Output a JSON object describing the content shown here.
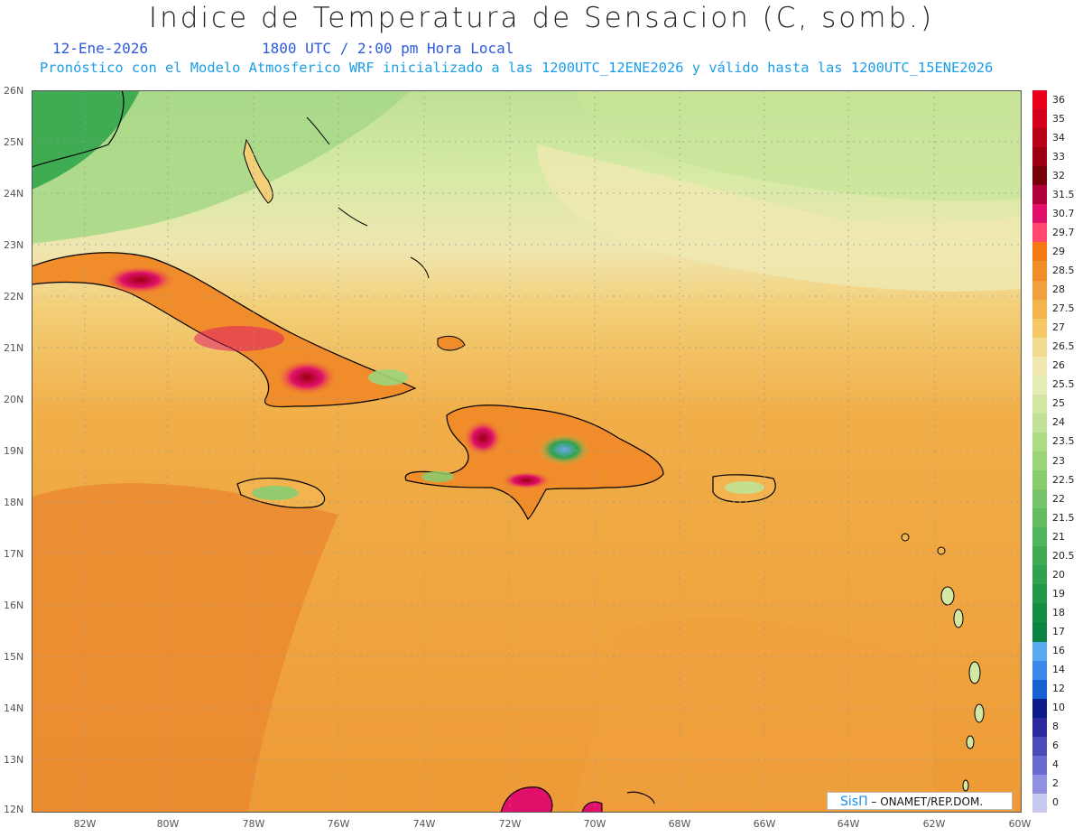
{
  "header": {
    "title": "Indice de Temperatura de Sensacion (C, somb.)",
    "date": "12-Ene-2026",
    "time": "1800 UTC / 2:00 pm Hora Local",
    "model_line": "Pronóstico con el Modelo Atmosferico WRF inicializado a las 1200UTC_12ENE2026 y válido hasta las  1200UTC_15ENE2026"
  },
  "axes": {
    "lat_labels": [
      "26N",
      "25N",
      "24N",
      "23N",
      "22N",
      "21N",
      "20N",
      "19N",
      "18N",
      "17N",
      "16N",
      "15N",
      "14N",
      "13N",
      "12N"
    ],
    "lon_labels": [
      "82W",
      "80W",
      "78W",
      "76W",
      "74W",
      "72W",
      "70W",
      "68W",
      "66W",
      "64W",
      "62W",
      "60W"
    ]
  },
  "legend": {
    "labels": [
      "36",
      "35",
      "34",
      "33",
      "32",
      "31.5",
      "30.7",
      "29.7",
      "29",
      "28.5",
      "28",
      "27.5",
      "27",
      "26.5",
      "26",
      "25.5",
      "25",
      "24",
      "23.5",
      "23",
      "22.5",
      "22",
      "21.5",
      "21",
      "20.5",
      "20",
      "19",
      "18",
      "17",
      "16",
      "14",
      "12",
      "10",
      "8",
      "6",
      "4",
      "2",
      "0"
    ],
    "colors": [
      "#e8001c",
      "#d4001a",
      "#b80016",
      "#9a0010",
      "#7a0008",
      "#b0003a",
      "#e0106a",
      "#ff4a6e",
      "#f57a14",
      "#f08c2a",
      "#f0a040",
      "#f3b450",
      "#f6c868",
      "#f3dc90",
      "#efe8b0",
      "#e4ecb8",
      "#d2e8a4",
      "#c0e294",
      "#aedc86",
      "#9cd47a",
      "#88cc70",
      "#74c468",
      "#62bc62",
      "#4fb45a",
      "#3fac54",
      "#2ea24e",
      "#209848",
      "#128e42",
      "#0a8440",
      "#5aa8f0",
      "#3a88e8",
      "#1660d0",
      "#0a1c8a",
      "#2a2aa0",
      "#4a4ab8",
      "#6a6ad0",
      "#9090e0",
      "#c8c8f0"
    ]
  },
  "credit": {
    "sis": "SisΠ",
    "org": " – ONAMET/REP.DOM."
  }
}
